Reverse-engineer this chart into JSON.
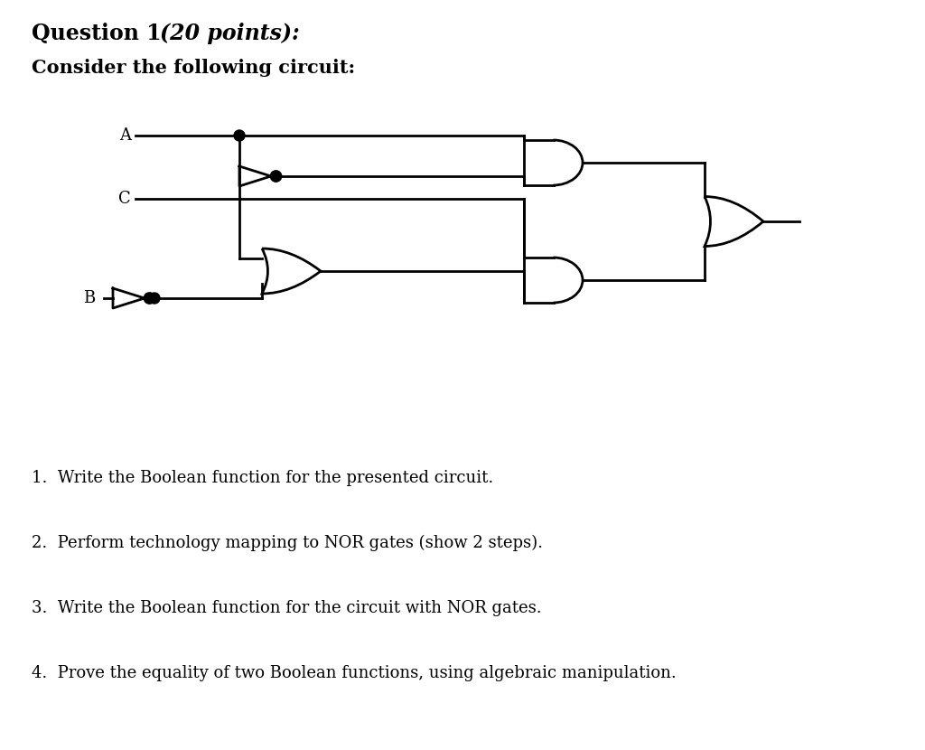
{
  "title_text": "Question 1",
  "title_italic": "(20 points):",
  "subtitle": "Consider the following circuit:",
  "questions": [
    "1.  Write the Boolean function for the presented circuit.",
    "2.  Perform technology mapping to NOR gates (show 2 steps).",
    "3.  Write the Boolean function for the circuit with NOR gates.",
    "4.  Prove the equality of two Boolean functions, using algebraic manipulation."
  ],
  "bg_color": "#ffffff",
  "line_color": "#000000",
  "lw": 2.0
}
